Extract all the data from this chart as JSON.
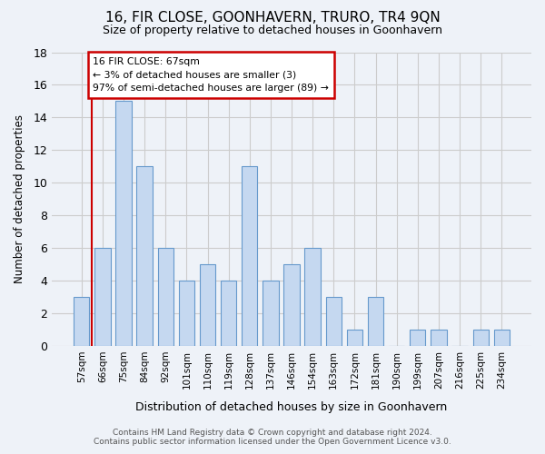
{
  "title": "16, FIR CLOSE, GOONHAVERN, TRURO, TR4 9QN",
  "subtitle": "Size of property relative to detached houses in Goonhavern",
  "xlabel": "Distribution of detached houses by size in Goonhavern",
  "ylabel": "Number of detached properties",
  "categories": [
    "57sqm",
    "66sqm",
    "75sqm",
    "84sqm",
    "92sqm",
    "101sqm",
    "110sqm",
    "119sqm",
    "128sqm",
    "137sqm",
    "146sqm",
    "154sqm",
    "163sqm",
    "172sqm",
    "181sqm",
    "190sqm",
    "199sqm",
    "207sqm",
    "216sqm",
    "225sqm",
    "234sqm"
  ],
  "values": [
    3,
    6,
    15,
    11,
    6,
    4,
    5,
    4,
    11,
    4,
    5,
    6,
    3,
    1,
    3,
    0,
    1,
    1,
    0,
    1,
    1
  ],
  "bar_color": "#c5d8f0",
  "bar_edge_color": "#6699cc",
  "grid_color": "#cccccc",
  "annotation_text": "16 FIR CLOSE: 67sqm\n← 3% of detached houses are smaller (3)\n97% of semi-detached houses are larger (89) →",
  "annotation_box_color": "#ffffff",
  "annotation_box_edge_color": "#cc0000",
  "vline_color": "#cc0000",
  "ylim": [
    0,
    18
  ],
  "yticks": [
    0,
    2,
    4,
    6,
    8,
    10,
    12,
    14,
    16,
    18
  ],
  "footer_line1": "Contains HM Land Registry data © Crown copyright and database right 2024.",
  "footer_line2": "Contains public sector information licensed under the Open Government Licence v3.0.",
  "bg_color": "#eef2f8"
}
